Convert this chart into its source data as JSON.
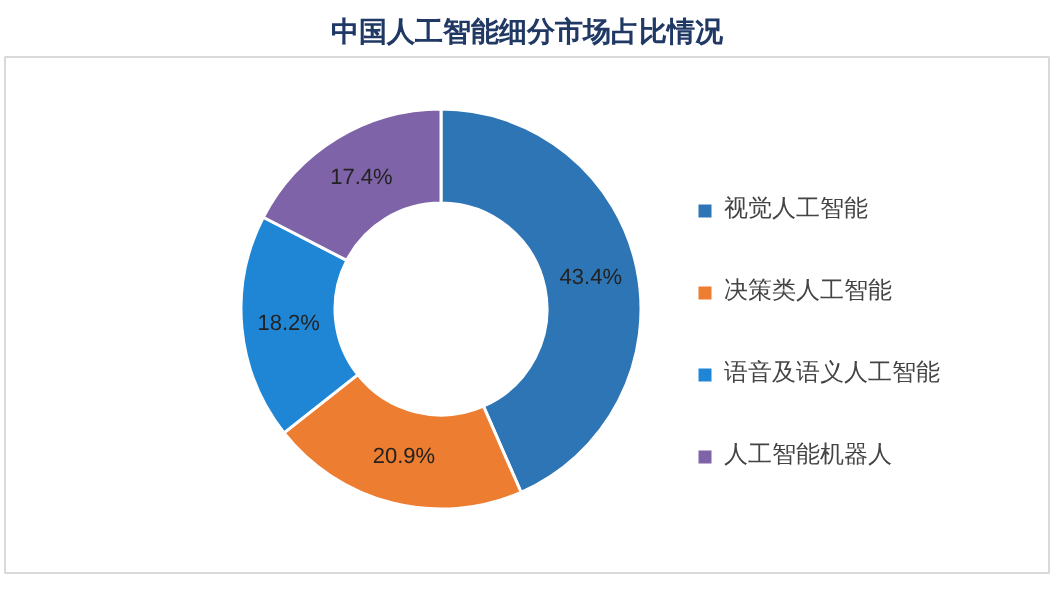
{
  "chart_data": {
    "type": "donut",
    "title": "中国人工智能细分市场占比情况",
    "categories": [
      "视觉人工智能",
      "决策类人工智能",
      "语音及语义人工智能",
      "人工智能机器人"
    ],
    "values": [
      43.4,
      20.9,
      18.2,
      17.4
    ],
    "value_labels": [
      "43.4%",
      "20.9%",
      "18.2%",
      "17.4%"
    ],
    "colors": [
      "#2e75b6",
      "#ed7d31",
      "#1f86d6",
      "#7f63a8"
    ],
    "legend": "right"
  }
}
